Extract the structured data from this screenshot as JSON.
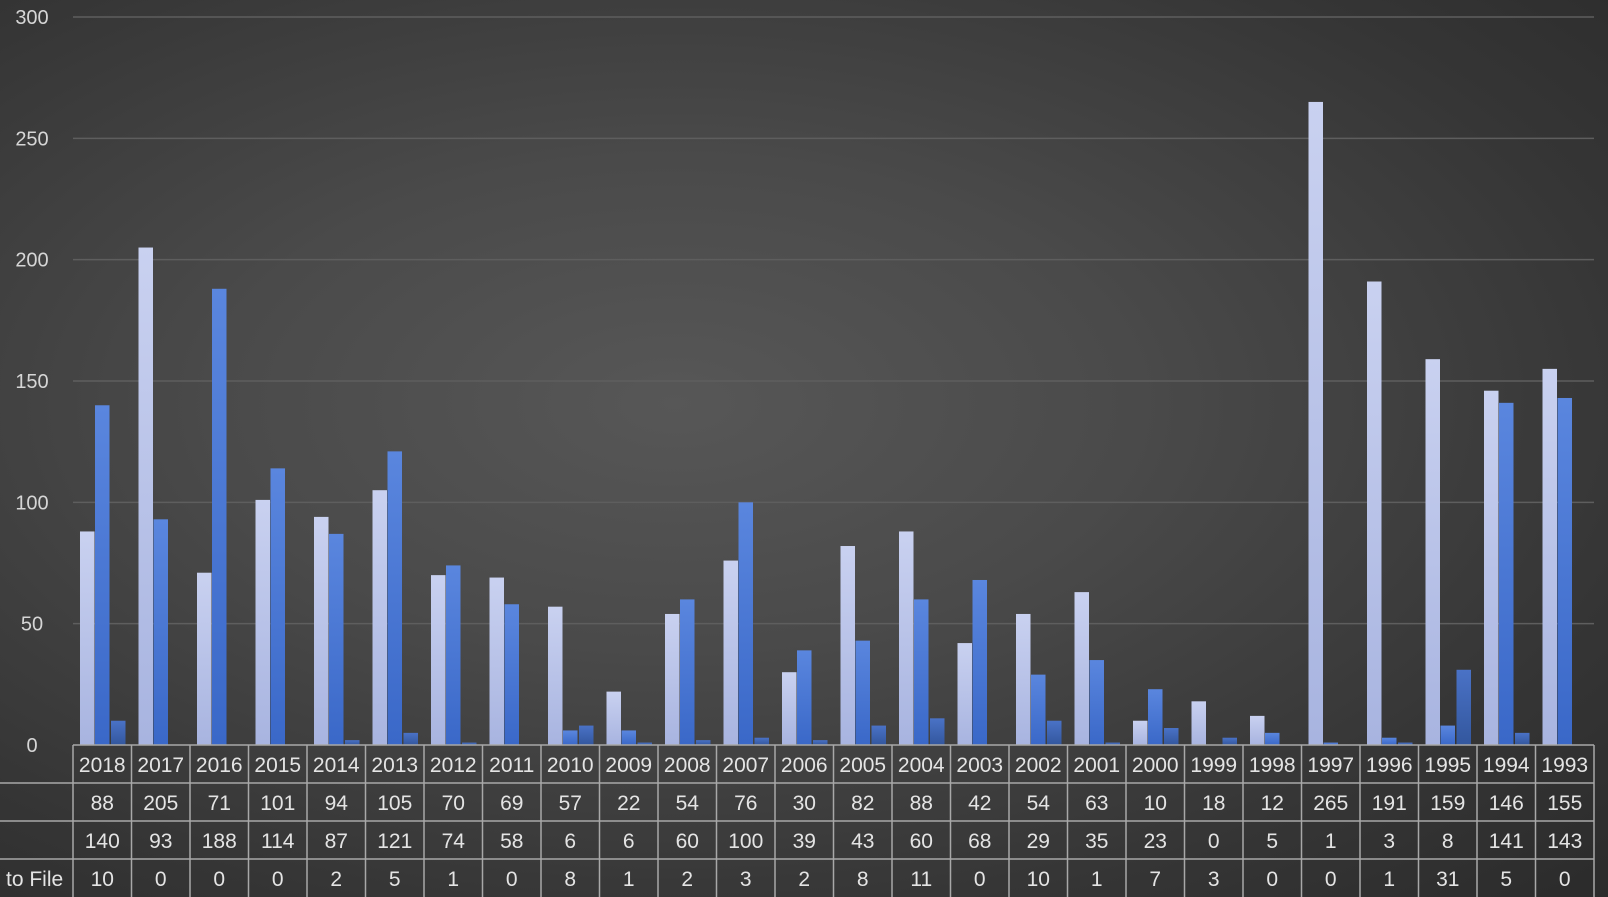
{
  "chart_data": {
    "type": "bar",
    "categories": [
      "2018",
      "2017",
      "2016",
      "2015",
      "2014",
      "2013",
      "2012",
      "2011",
      "2010",
      "2009",
      "2008",
      "2007",
      "2006",
      "2005",
      "2004",
      "2003",
      "2002",
      "2001",
      "2000",
      "1999",
      "1998",
      "1997",
      "1996",
      "1995",
      "1994",
      "1993"
    ],
    "series": [
      {
        "values": [
          88,
          205,
          71,
          101,
          94,
          105,
          70,
          69,
          57,
          22,
          54,
          76,
          30,
          82,
          88,
          42,
          54,
          63,
          10,
          18,
          12,
          265,
          191,
          159,
          146,
          155
        ],
        "color": "#bcc6ea"
      },
      {
        "values": [
          140,
          93,
          188,
          114,
          87,
          121,
          74,
          58,
          6,
          6,
          60,
          100,
          39,
          43,
          60,
          68,
          29,
          35,
          23,
          0,
          5,
          1,
          3,
          8,
          141,
          143
        ],
        "color": "#4a78d4"
      },
      {
        "name": "to File",
        "values": [
          10,
          0,
          0,
          0,
          2,
          5,
          1,
          0,
          8,
          1,
          2,
          3,
          2,
          8,
          11,
          0,
          10,
          1,
          7,
          3,
          0,
          0,
          1,
          31,
          5,
          0
        ],
        "color": "#3a60b0"
      }
    ],
    "ylim": [
      0,
      300
    ],
    "yticks": [
      0,
      50,
      100,
      150,
      200,
      250,
      300
    ],
    "grid": true,
    "data_table": true
  }
}
